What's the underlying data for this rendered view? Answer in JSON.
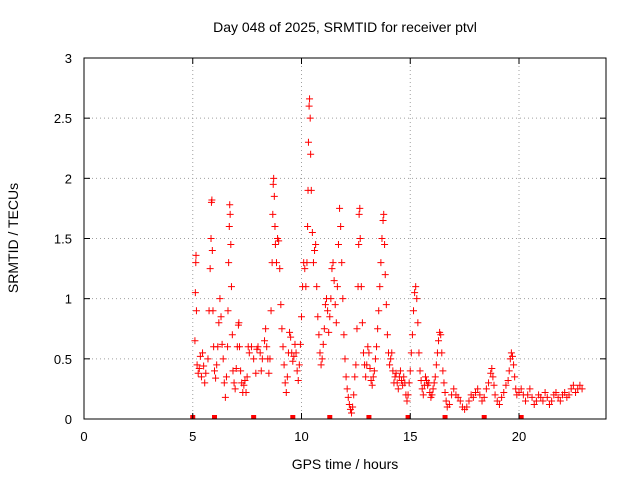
{
  "chart_data": {
    "type": "scatter",
    "title": "Day 048 of 2025, SRMTID for receiver ptvl",
    "xlabel": "GPS time / hours",
    "ylabel": "SRMTID / TECUs",
    "xlim": [
      0,
      24
    ],
    "ylim": [
      0,
      3
    ],
    "xticks": [
      0,
      5,
      10,
      15,
      20
    ],
    "yticks": [
      0,
      0.5,
      1,
      1.5,
      2,
      2.5,
      3
    ],
    "xtick_labels": [
      "0",
      "5",
      "10",
      "15",
      "20"
    ],
    "ytick_labels": [
      "0",
      "0.5",
      "1",
      "1.5",
      "2",
      "2.5",
      "3"
    ],
    "grid": true,
    "marker": "plus",
    "color": "#ff0000",
    "series": [
      {
        "name": "SRMTID",
        "points": [
          [
            5.1,
            0.65
          ],
          [
            5.12,
            1.05
          ],
          [
            5.14,
            1.3
          ],
          [
            5.15,
            1.36
          ],
          [
            5.17,
            0.9
          ],
          [
            5.2,
            0.45
          ],
          [
            5.25,
            0.38
          ],
          [
            5.3,
            0.42
          ],
          [
            5.35,
            0.52
          ],
          [
            5.4,
            0.35
          ],
          [
            5.45,
            0.55
          ],
          [
            5.5,
            0.44
          ],
          [
            5.55,
            0.3
          ],
          [
            5.6,
            0.38
          ],
          [
            5.7,
            0.5
          ],
          [
            5.75,
            0.9
          ],
          [
            5.8,
            1.25
          ],
          [
            5.84,
            1.5
          ],
          [
            5.86,
            1.8
          ],
          [
            5.88,
            1.82
          ],
          [
            5.9,
            1.4
          ],
          [
            5.93,
            0.9
          ],
          [
            5.96,
            0.6
          ],
          [
            6.0,
            0.4
          ],
          [
            6.05,
            0.34
          ],
          [
            6.1,
            0.45
          ],
          [
            6.15,
            0.6
          ],
          [
            6.2,
            0.8
          ],
          [
            6.25,
            1.0
          ],
          [
            6.3,
            0.85
          ],
          [
            6.35,
            0.62
          ],
          [
            6.4,
            0.5
          ],
          [
            6.45,
            0.3
          ],
          [
            6.5,
            0.18
          ],
          [
            6.55,
            0.35
          ],
          [
            6.6,
            0.6
          ],
          [
            6.62,
            0.9
          ],
          [
            6.65,
            1.3
          ],
          [
            6.68,
            1.6
          ],
          [
            6.7,
            1.78
          ],
          [
            6.72,
            1.7
          ],
          [
            6.75,
            1.45
          ],
          [
            6.78,
            1.1
          ],
          [
            6.82,
            0.7
          ],
          [
            6.85,
            0.4
          ],
          [
            6.9,
            0.3
          ],
          [
            6.95,
            0.25
          ],
          [
            7.0,
            0.42
          ],
          [
            7.05,
            0.6
          ],
          [
            7.1,
            0.78
          ],
          [
            7.12,
            0.8
          ],
          [
            7.15,
            0.6
          ],
          [
            7.2,
            0.4
          ],
          [
            7.25,
            0.3
          ],
          [
            7.3,
            0.22
          ],
          [
            7.35,
            0.28
          ],
          [
            7.4,
            0.32
          ],
          [
            7.45,
            0.22
          ],
          [
            7.5,
            0.35
          ],
          [
            7.55,
            0.6
          ],
          [
            7.6,
            0.55
          ],
          [
            7.7,
            0.6
          ],
          [
            7.8,
            0.5
          ],
          [
            7.9,
            0.38
          ],
          [
            7.95,
            0.58
          ],
          [
            8.0,
            0.6
          ],
          [
            8.1,
            0.55
          ],
          [
            8.15,
            0.4
          ],
          [
            8.2,
            0.5
          ],
          [
            8.3,
            0.65
          ],
          [
            8.35,
            0.75
          ],
          [
            8.4,
            0.6
          ],
          [
            8.45,
            0.5
          ],
          [
            8.5,
            0.38
          ],
          [
            8.55,
            0.5
          ],
          [
            8.6,
            0.9
          ],
          [
            8.65,
            1.3
          ],
          [
            8.68,
            1.7
          ],
          [
            8.7,
            1.95
          ],
          [
            8.72,
            2.0
          ],
          [
            8.75,
            1.85
          ],
          [
            8.78,
            1.6
          ],
          [
            8.8,
            1.45
          ],
          [
            8.85,
            1.3
          ],
          [
            8.9,
            1.5
          ],
          [
            8.95,
            1.48
          ],
          [
            9.0,
            1.25
          ],
          [
            9.05,
            0.95
          ],
          [
            9.1,
            0.75
          ],
          [
            9.15,
            0.6
          ],
          [
            9.2,
            0.45
          ],
          [
            9.25,
            0.3
          ],
          [
            9.3,
            0.22
          ],
          [
            9.35,
            0.35
          ],
          [
            9.4,
            0.55
          ],
          [
            9.45,
            0.72
          ],
          [
            9.5,
            0.68
          ],
          [
            9.55,
            0.55
          ],
          [
            9.6,
            0.48
          ],
          [
            9.65,
            0.52
          ],
          [
            9.7,
            0.62
          ],
          [
            9.75,
            0.55
          ],
          [
            9.8,
            0.4
          ],
          [
            9.85,
            0.32
          ],
          [
            9.9,
            0.45
          ],
          [
            9.95,
            0.62
          ],
          [
            10.0,
            0.85
          ],
          [
            10.05,
            1.1
          ],
          [
            10.1,
            1.3
          ],
          [
            10.15,
            1.25
          ],
          [
            10.2,
            1.1
          ],
          [
            10.25,
            1.3
          ],
          [
            10.28,
            1.6
          ],
          [
            10.3,
            1.9
          ],
          [
            10.32,
            2.3
          ],
          [
            10.35,
            2.6
          ],
          [
            10.37,
            2.66
          ],
          [
            10.4,
            2.5
          ],
          [
            10.42,
            2.2
          ],
          [
            10.45,
            1.9
          ],
          [
            10.5,
            1.55
          ],
          [
            10.55,
            1.3
          ],
          [
            10.6,
            1.4
          ],
          [
            10.65,
            1.45
          ],
          [
            10.7,
            1.1
          ],
          [
            10.75,
            0.85
          ],
          [
            10.8,
            0.7
          ],
          [
            10.85,
            0.55
          ],
          [
            10.9,
            0.45
          ],
          [
            10.95,
            0.5
          ],
          [
            11.0,
            0.62
          ],
          [
            11.05,
            0.75
          ],
          [
            11.1,
            0.95
          ],
          [
            11.15,
            1.0
          ],
          [
            11.2,
            0.9
          ],
          [
            11.25,
            0.72
          ],
          [
            11.3,
            0.85
          ],
          [
            11.35,
            1.0
          ],
          [
            11.4,
            1.25
          ],
          [
            11.45,
            1.3
          ],
          [
            11.5,
            1.15
          ],
          [
            11.55,
            0.95
          ],
          [
            11.6,
            0.8
          ],
          [
            11.65,
            1.1
          ],
          [
            11.7,
            1.45
          ],
          [
            11.75,
            1.75
          ],
          [
            11.8,
            1.6
          ],
          [
            11.85,
            1.3
          ],
          [
            11.9,
            1.0
          ],
          [
            11.95,
            0.7
          ],
          [
            12.0,
            0.5
          ],
          [
            12.05,
            0.35
          ],
          [
            12.1,
            0.25
          ],
          [
            12.15,
            0.18
          ],
          [
            12.2,
            0.12
          ],
          [
            12.25,
            0.08
          ],
          [
            12.3,
            0.05
          ],
          [
            12.35,
            0.1
          ],
          [
            12.4,
            0.2
          ],
          [
            12.45,
            0.35
          ],
          [
            12.5,
            0.45
          ],
          [
            12.55,
            0.75
          ],
          [
            12.6,
            1.1
          ],
          [
            12.63,
            1.45
          ],
          [
            12.65,
            1.7
          ],
          [
            12.68,
            1.75
          ],
          [
            12.7,
            1.5
          ],
          [
            12.75,
            1.1
          ],
          [
            12.8,
            0.8
          ],
          [
            12.85,
            0.55
          ],
          [
            12.9,
            0.45
          ],
          [
            12.95,
            0.35
          ],
          [
            13.0,
            0.45
          ],
          [
            13.05,
            0.6
          ],
          [
            13.1,
            0.55
          ],
          [
            13.15,
            0.42
          ],
          [
            13.2,
            0.32
          ],
          [
            13.25,
            0.28
          ],
          [
            13.3,
            0.35
          ],
          [
            13.35,
            0.4
          ],
          [
            13.4,
            0.5
          ],
          [
            13.45,
            0.6
          ],
          [
            13.5,
            0.75
          ],
          [
            13.55,
            0.9
          ],
          [
            13.6,
            1.1
          ],
          [
            13.65,
            1.3
          ],
          [
            13.7,
            1.5
          ],
          [
            13.75,
            1.65
          ],
          [
            13.78,
            1.7
          ],
          [
            13.82,
            1.45
          ],
          [
            13.85,
            1.2
          ],
          [
            13.9,
            0.95
          ],
          [
            13.95,
            0.7
          ],
          [
            14.0,
            0.55
          ],
          [
            14.05,
            0.45
          ],
          [
            14.1,
            0.5
          ],
          [
            14.15,
            0.55
          ],
          [
            14.2,
            0.4
          ],
          [
            14.25,
            0.3
          ],
          [
            14.3,
            0.35
          ],
          [
            14.35,
            0.38
          ],
          [
            14.4,
            0.3
          ],
          [
            14.45,
            0.25
          ],
          [
            14.5,
            0.35
          ],
          [
            14.55,
            0.4
          ],
          [
            14.6,
            0.32
          ],
          [
            14.65,
            0.28
          ],
          [
            14.7,
            0.35
          ],
          [
            14.75,
            0.3
          ],
          [
            14.8,
            0.2
          ],
          [
            14.85,
            0.15
          ],
          [
            14.9,
            0.2
          ],
          [
            14.95,
            0.3
          ],
          [
            15.0,
            0.4
          ],
          [
            15.05,
            0.55
          ],
          [
            15.1,
            0.7
          ],
          [
            15.15,
            0.9
          ],
          [
            15.2,
            1.05
          ],
          [
            15.25,
            1.1
          ],
          [
            15.3,
            1.0
          ],
          [
            15.35,
            0.8
          ],
          [
            15.4,
            0.55
          ],
          [
            15.45,
            0.4
          ],
          [
            15.5,
            0.32
          ],
          [
            15.55,
            0.25
          ],
          [
            15.6,
            0.2
          ],
          [
            15.65,
            0.28
          ],
          [
            15.7,
            0.35
          ],
          [
            15.75,
            0.32
          ],
          [
            15.8,
            0.28
          ],
          [
            15.85,
            0.3
          ],
          [
            15.9,
            0.22
          ],
          [
            15.95,
            0.18
          ],
          [
            16.0,
            0.2
          ],
          [
            16.05,
            0.25
          ],
          [
            16.1,
            0.3
          ],
          [
            16.15,
            0.35
          ],
          [
            16.2,
            0.45
          ],
          [
            16.25,
            0.55
          ],
          [
            16.3,
            0.65
          ],
          [
            16.35,
            0.72
          ],
          [
            16.4,
            0.7
          ],
          [
            16.45,
            0.55
          ],
          [
            16.5,
            0.4
          ],
          [
            16.55,
            0.3
          ],
          [
            16.6,
            0.22
          ],
          [
            16.65,
            0.15
          ],
          [
            16.7,
            0.1
          ],
          [
            16.8,
            0.12
          ],
          [
            16.9,
            0.2
          ],
          [
            17.0,
            0.25
          ],
          [
            17.1,
            0.2
          ],
          [
            17.2,
            0.18
          ],
          [
            17.3,
            0.15
          ],
          [
            17.4,
            0.1
          ],
          [
            17.5,
            0.08
          ],
          [
            17.6,
            0.1
          ],
          [
            17.7,
            0.15
          ],
          [
            17.8,
            0.2
          ],
          [
            17.9,
            0.18
          ],
          [
            18.0,
            0.22
          ],
          [
            18.1,
            0.25
          ],
          [
            18.2,
            0.2
          ],
          [
            18.3,
            0.15
          ],
          [
            18.4,
            0.18
          ],
          [
            18.5,
            0.25
          ],
          [
            18.6,
            0.3
          ],
          [
            18.7,
            0.38
          ],
          [
            18.75,
            0.42
          ],
          [
            18.8,
            0.35
          ],
          [
            18.85,
            0.28
          ],
          [
            18.9,
            0.2
          ],
          [
            19.0,
            0.15
          ],
          [
            19.1,
            0.12
          ],
          [
            19.2,
            0.18
          ],
          [
            19.3,
            0.22
          ],
          [
            19.4,
            0.28
          ],
          [
            19.5,
            0.32
          ],
          [
            19.55,
            0.4
          ],
          [
            19.6,
            0.5
          ],
          [
            19.65,
            0.55
          ],
          [
            19.7,
            0.52
          ],
          [
            19.75,
            0.45
          ],
          [
            19.8,
            0.35
          ],
          [
            19.85,
            0.25
          ],
          [
            19.9,
            0.2
          ],
          [
            20.0,
            0.22
          ],
          [
            20.1,
            0.25
          ],
          [
            20.2,
            0.2
          ],
          [
            20.3,
            0.15
          ],
          [
            20.4,
            0.2
          ],
          [
            20.5,
            0.25
          ],
          [
            20.6,
            0.18
          ],
          [
            20.7,
            0.12
          ],
          [
            20.8,
            0.15
          ],
          [
            20.9,
            0.2
          ],
          [
            21.0,
            0.18
          ],
          [
            21.1,
            0.15
          ],
          [
            21.2,
            0.22
          ],
          [
            21.3,
            0.18
          ],
          [
            21.4,
            0.12
          ],
          [
            21.5,
            0.15
          ],
          [
            21.6,
            0.2
          ],
          [
            21.7,
            0.22
          ],
          [
            21.8,
            0.18
          ],
          [
            21.9,
            0.15
          ],
          [
            22.0,
            0.2
          ],
          [
            22.1,
            0.22
          ],
          [
            22.2,
            0.18
          ],
          [
            22.3,
            0.2
          ],
          [
            22.4,
            0.25
          ],
          [
            22.5,
            0.28
          ],
          [
            22.6,
            0.22
          ],
          [
            22.7,
            0.25
          ],
          [
            22.8,
            0.28
          ],
          [
            22.9,
            0.25
          ]
        ]
      }
    ],
    "gap_markers_x": [
      5.0,
      6.0,
      7.8,
      9.6,
      11.3,
      13.1,
      14.9,
      16.6,
      18.4,
      20.1
    ]
  }
}
